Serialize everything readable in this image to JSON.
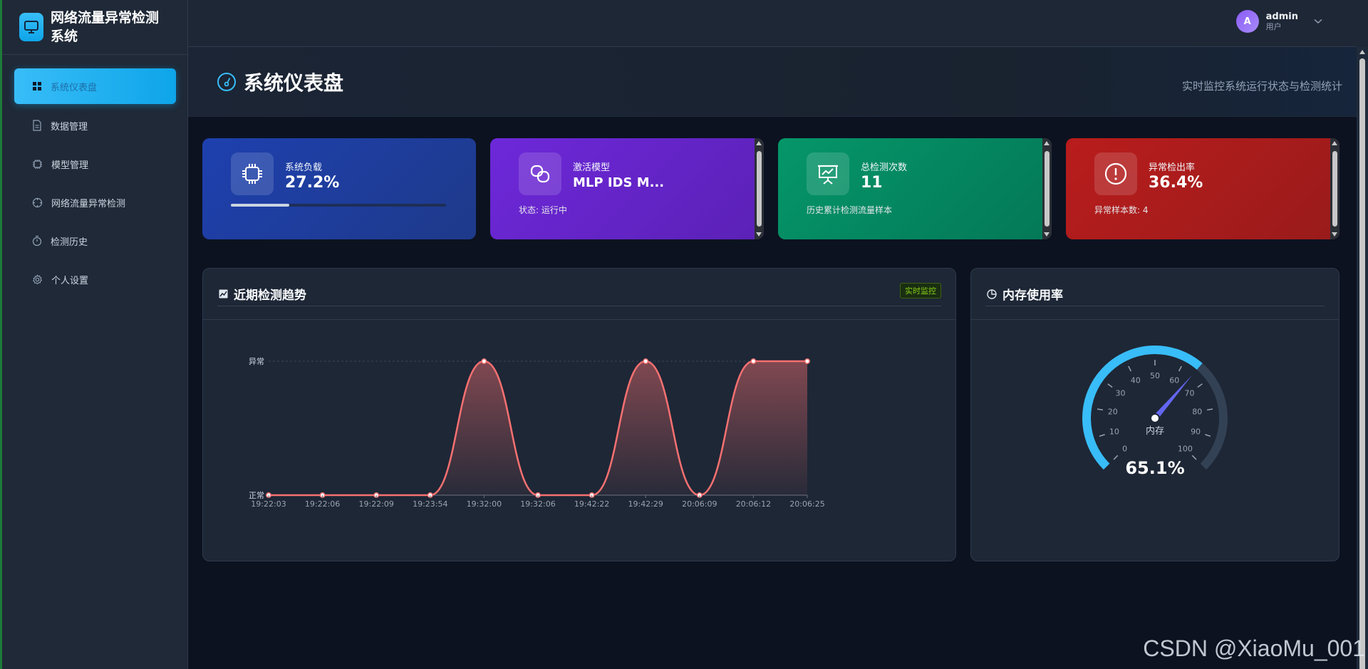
{
  "brand": {
    "title": "网络流量异常检测系统"
  },
  "sidebar": {
    "items": [
      {
        "label": "系统仪表盘",
        "icon": "grid-icon"
      },
      {
        "label": "数据管理",
        "icon": "document-icon"
      },
      {
        "label": "模型管理",
        "icon": "chip-icon"
      },
      {
        "label": "网络流量异常检测",
        "icon": "crosshair-icon"
      },
      {
        "label": "检测历史",
        "icon": "stopwatch-icon"
      },
      {
        "label": "个人设置",
        "icon": "gear-icon"
      }
    ]
  },
  "user": {
    "initial": "A",
    "name": "admin",
    "role": "用户"
  },
  "page": {
    "title": "系统仪表盘",
    "subtitle": "实时监控系统运行状态与检测统计"
  },
  "stats": {
    "load": {
      "label": "系统负载",
      "value": "27.2%",
      "progress": 0.272,
      "color": "#1e40af"
    },
    "model": {
      "label": "激活模型",
      "value": "MLP IDS M...",
      "sub": "状态: 运行中",
      "color": "#6d28d9"
    },
    "total": {
      "label": "总检测次数",
      "value": "11",
      "sub": "历史累计检测流量样本",
      "color": "#059669"
    },
    "anomaly": {
      "label": "异常检出率",
      "value": "36.4%",
      "sub": "异常样本数: 4",
      "color": "#b91c1c"
    }
  },
  "trend": {
    "title": "近期检测趋势",
    "badge": "实时监控",
    "chart_data": {
      "type": "line",
      "title": "",
      "categories": [
        "19:22:03",
        "19:22:06",
        "19:22:09",
        "19:23:54",
        "19:32:00",
        "19:32:06",
        "19:42:22",
        "19:42:29",
        "20:06:09",
        "20:06:12",
        "20:06:25"
      ],
      "y_tick_labels": [
        "正常",
        "异常"
      ],
      "series": [
        {
          "values": [
            0,
            0,
            0,
            0,
            1,
            0,
            0,
            1,
            0,
            1,
            1
          ],
          "color": "#f87171"
        }
      ],
      "ylim": [
        0,
        1
      ],
      "smooth": true,
      "area": true,
      "grid": "dashed line at 异常"
    }
  },
  "memory": {
    "title": "内存使用率",
    "chart_data": {
      "type": "gauge",
      "name": "内存",
      "value": 65.1,
      "display": "65.1%",
      "min": 0,
      "max": 100,
      "ticks": [
        "0",
        "10",
        "20",
        "30",
        "40",
        "50",
        "60",
        "70",
        "80",
        "90",
        "100"
      ],
      "color": "#38bdf8"
    }
  },
  "watermark": "CSDN @XiaoMu_001"
}
